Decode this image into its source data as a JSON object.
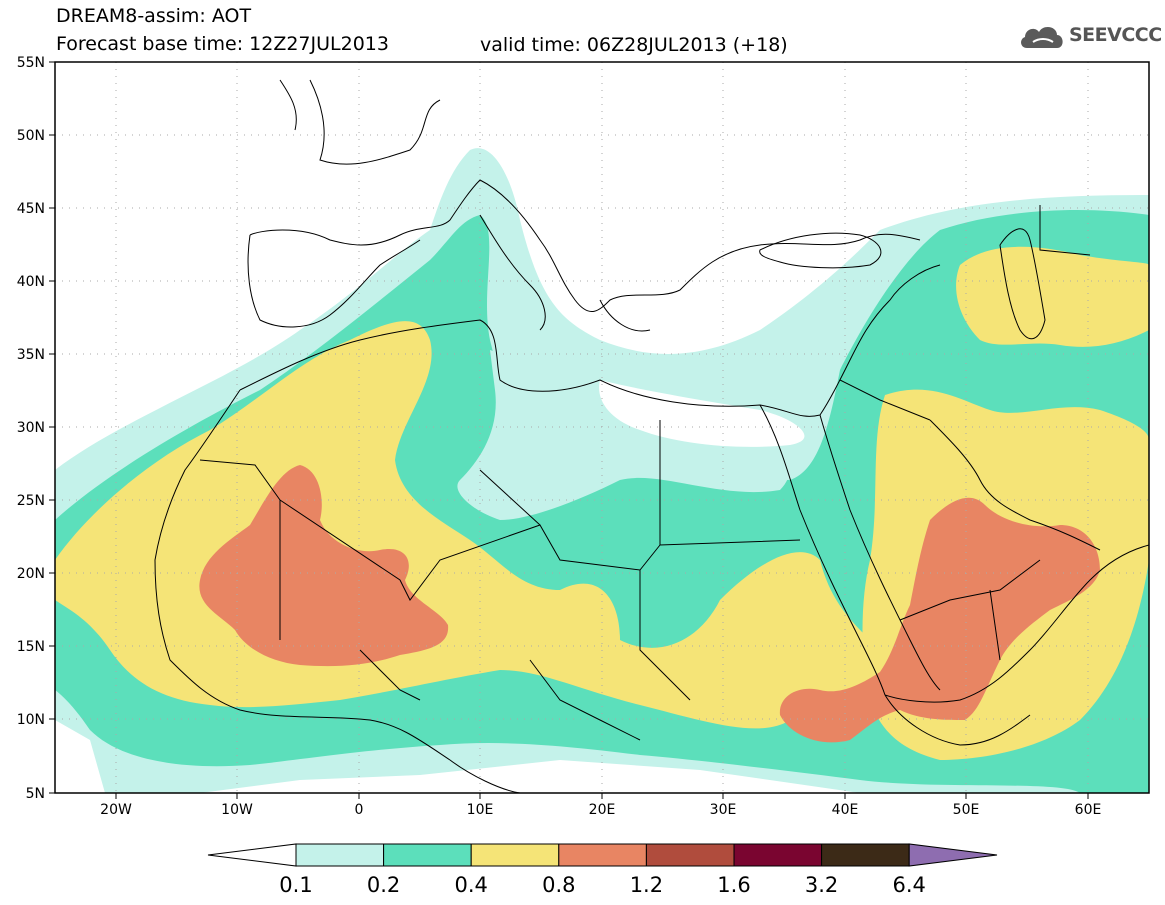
{
  "header": {
    "title_line1": "DREAM8-assim: AOT",
    "title_line2": "Forecast base time: 12Z27JUL2013",
    "valid_time": "valid time: 06Z28JUL2013 (+18)",
    "logo_text": "SEEVCCC"
  },
  "map": {
    "lon_range": [
      -25,
      65
    ],
    "lat_range": [
      5,
      55
    ],
    "lat_labels": [
      "55N",
      "50N",
      "45N",
      "40N",
      "35N",
      "30N",
      "25N",
      "20N",
      "15N",
      "10N",
      "5N"
    ],
    "lon_labels": [
      "20W",
      "10W",
      "0",
      "10E",
      "20E",
      "30E",
      "40E",
      "50E",
      "60E"
    ],
    "variable": "AOT"
  },
  "colorbar": {
    "labels": [
      "0.1",
      "0.2",
      "0.4",
      "0.8",
      "1.2",
      "1.6",
      "3.2",
      "6.4"
    ],
    "colors": [
      "#ffffff",
      "#c4f2ea",
      "#5cdfbb",
      "#f5e477",
      "#e88563",
      "#b04c3d",
      "#7a0530",
      "#3c2a17",
      "#8e6db0"
    ]
  }
}
